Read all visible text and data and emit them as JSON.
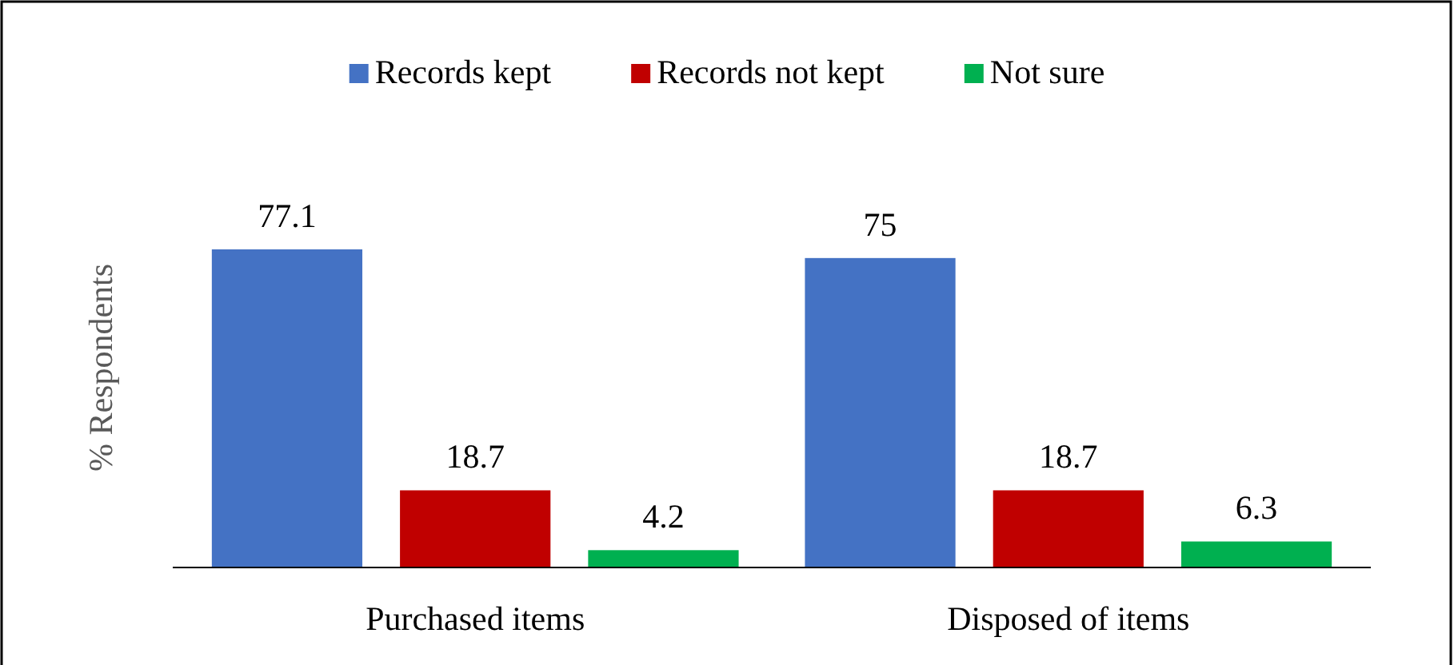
{
  "chart_data": {
    "type": "bar",
    "ylabel": "% Respondents",
    "categories": [
      "Purchased items",
      "Disposed of items"
    ],
    "series": [
      {
        "name": "Records kept",
        "color": "#4472c4",
        "values": [
          77.1,
          75
        ]
      },
      {
        "name": "Records not kept",
        "color": "#c00000",
        "values": [
          18.7,
          18.7
        ]
      },
      {
        "name": "Not sure",
        "color": "#00b050",
        "values": [
          4.2,
          6.3
        ]
      }
    ],
    "data_labels": true,
    "legend": "top"
  }
}
